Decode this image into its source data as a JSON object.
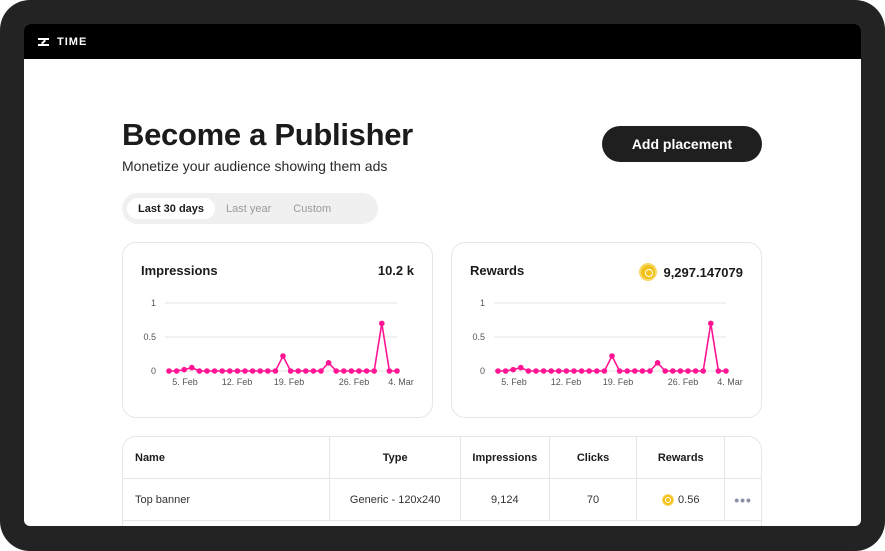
{
  "app": {
    "logo_text": "TIME"
  },
  "header": {
    "title": "Become a Publisher",
    "subtitle": "Monetize your audience showing them ads",
    "add_button": "Add placement"
  },
  "range": {
    "options": [
      "Last 30 days",
      "Last year",
      "Custom"
    ],
    "selected": "Last 30 days"
  },
  "colors": {
    "accent": "#ff1493",
    "coin": "#f2c21b",
    "dark": "#1f1f1f"
  },
  "cards": [
    {
      "title": "Impressions",
      "value": "10.2 k",
      "icon": "",
      "chart_data": {
        "type": "line",
        "title": "",
        "xlabel": "",
        "ylabel": "",
        "ylim": [
          0,
          1
        ],
        "y_ticks": [
          "1",
          "0.5",
          "0"
        ],
        "x_ticks": [
          "5. Feb",
          "12. Feb",
          "19. Feb",
          "26. Feb",
          "4. Mar"
        ],
        "grid": true,
        "series": [
          {
            "values": [
              0,
              0,
              0.02,
              0.05,
              0,
              0,
              0,
              0,
              0,
              0,
              0,
              0,
              0,
              0,
              0,
              0.22,
              0,
              0,
              0,
              0,
              0,
              0.12,
              0,
              0,
              0,
              0,
              0,
              0,
              0.7,
              0,
              0
            ]
          }
        ]
      }
    },
    {
      "title": "Rewards",
      "value": "9,297.147079",
      "icon": "coin-icon",
      "chart_data": {
        "type": "line",
        "title": "",
        "xlabel": "",
        "ylabel": "",
        "ylim": [
          0,
          1
        ],
        "y_ticks": [
          "1",
          "0.5",
          "0"
        ],
        "x_ticks": [
          "5. Feb",
          "12. Feb",
          "19. Feb",
          "26. Feb",
          "4. Mar"
        ],
        "grid": true,
        "series": [
          {
            "values": [
              0,
              0,
              0.02,
              0.05,
              0,
              0,
              0,
              0,
              0,
              0,
              0,
              0,
              0,
              0,
              0,
              0.22,
              0,
              0,
              0,
              0,
              0,
              0.12,
              0,
              0,
              0,
              0,
              0,
              0,
              0.7,
              0,
              0
            ]
          }
        ]
      }
    }
  ],
  "table": {
    "headers": [
      "Name",
      "Type",
      "Impressions",
      "Clicks",
      "Rewards"
    ],
    "rows": [
      {
        "name": "Top banner",
        "type": "Generic - 120x240",
        "impressions": "9,124",
        "clicks": "70",
        "rewards": "0.56"
      }
    ]
  }
}
